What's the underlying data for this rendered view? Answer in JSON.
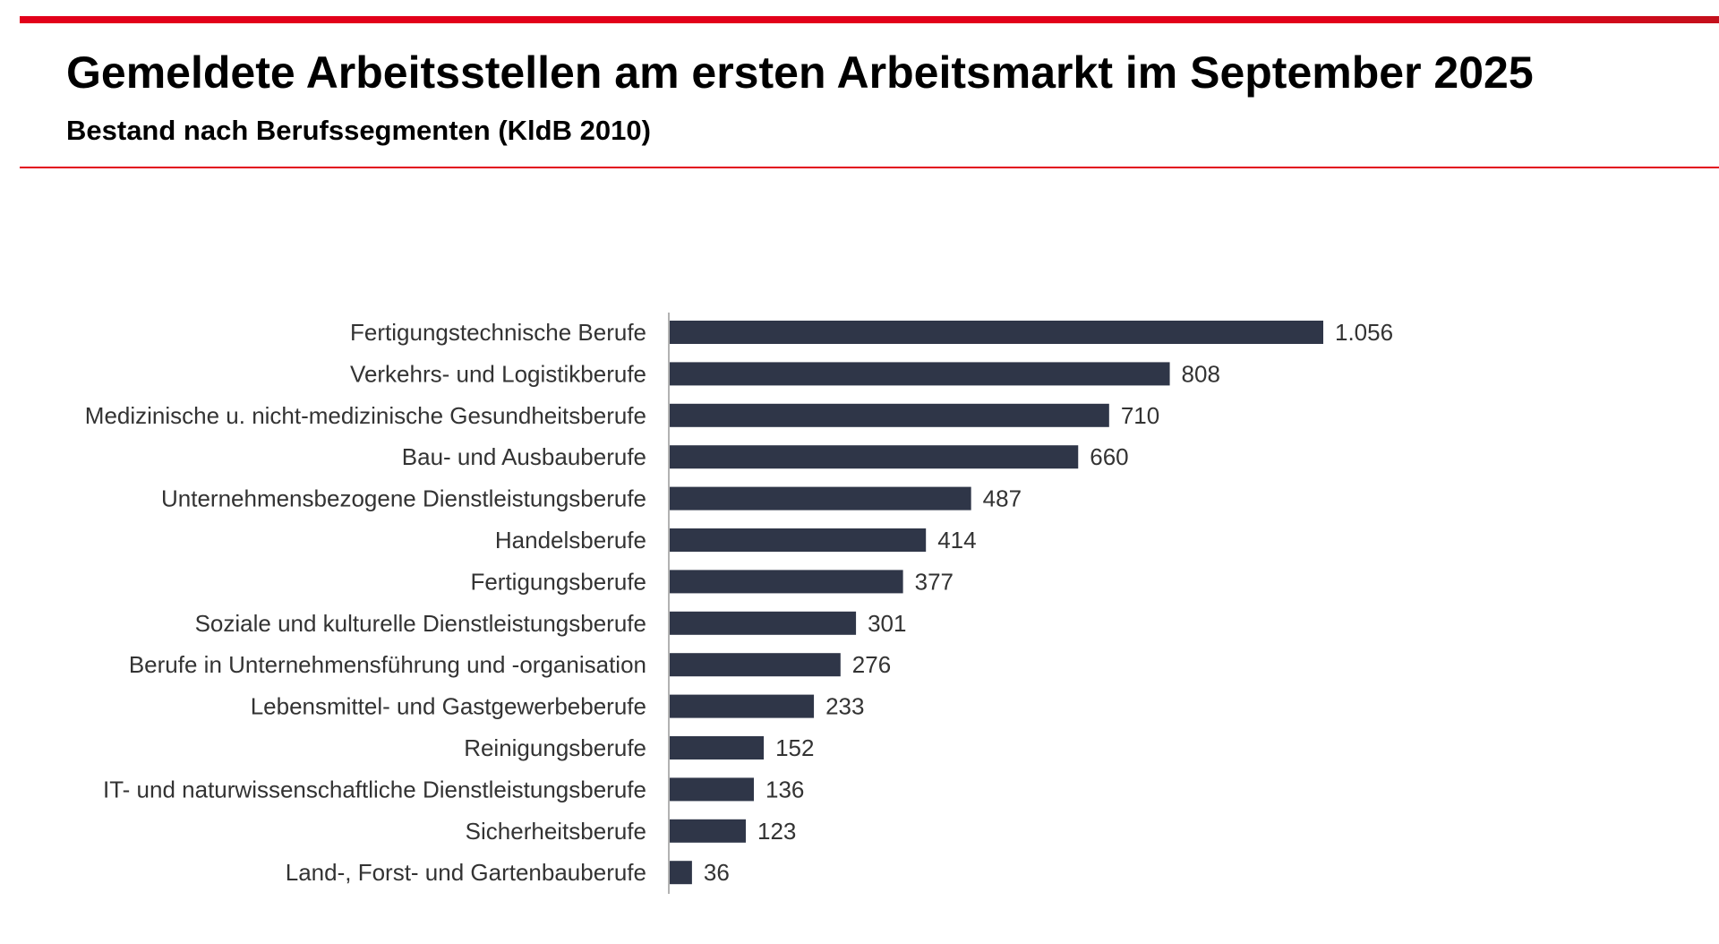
{
  "header": {
    "title": "Gemeldete Arbeitsstellen am ersten Arbeitsmarkt im September 2025",
    "subtitle": "Bestand nach Berufssegmenten (KldB 2010)"
  },
  "colors": {
    "accent": "#e2001a",
    "bar": "#2f3648"
  },
  "chart_data": {
    "type": "bar",
    "orientation": "horizontal",
    "title": "Gemeldete Arbeitsstellen am ersten Arbeitsmarkt im September 2025",
    "subtitle": "Bestand nach Berufssegmenten (KldB 2010)",
    "categories": [
      "Fertigungstechnische Berufe",
      "Verkehrs- und Logistikberufe",
      "Medizinische u. nicht-medizinische Gesundheitsberufe",
      "Bau- und Ausbauberufe",
      "Unternehmensbezogene Dienstleistungsberufe",
      "Handelsberufe",
      "Fertigungsberufe",
      "Soziale und kulturelle Dienstleistungsberufe",
      "Berufe in Unternehmensführung und -organisation",
      "Lebensmittel- und Gastgewerbeberufe",
      "Reinigungsberufe",
      "IT- und naturwissenschaftliche Dienstleistungsberufe",
      "Sicherheitsberufe",
      "Land-, Forst- und Gartenbauberufe"
    ],
    "values": [
      1056,
      808,
      710,
      660,
      487,
      414,
      377,
      301,
      276,
      233,
      152,
      136,
      123,
      36
    ],
    "value_labels": [
      "1.056",
      "808",
      "710",
      "660",
      "487",
      "414",
      "377",
      "301",
      "276",
      "233",
      "152",
      "136",
      "123",
      "36"
    ],
    "xlim": [
      0,
      1056
    ],
    "grid": false,
    "legend": "none"
  }
}
